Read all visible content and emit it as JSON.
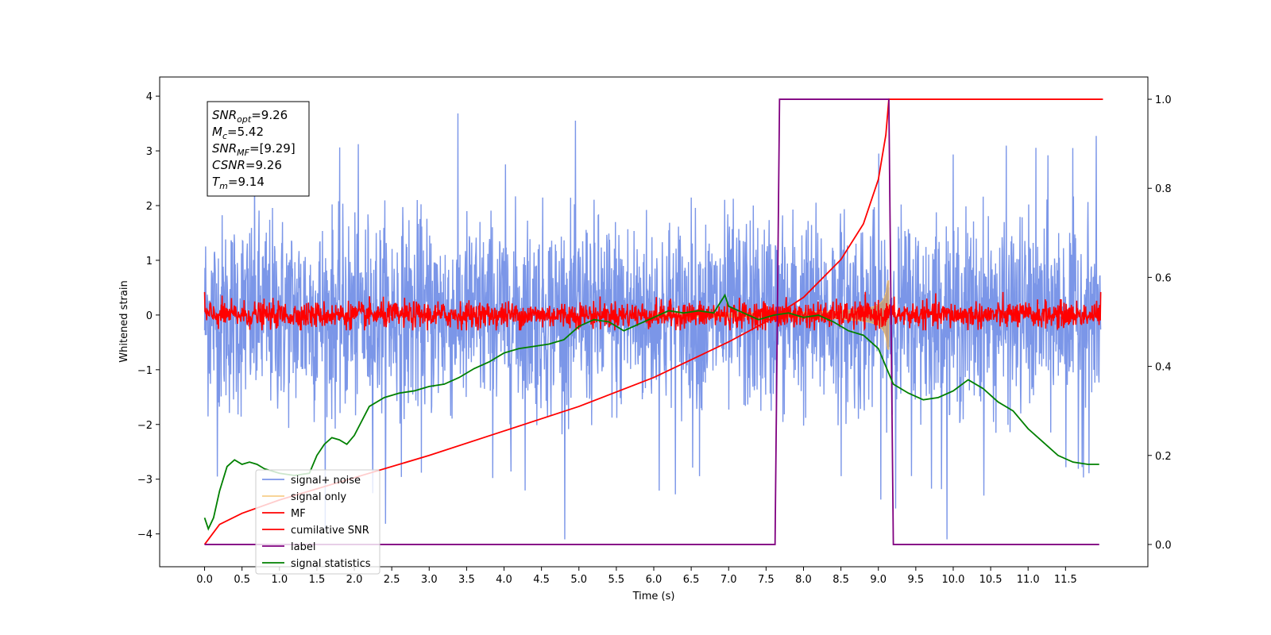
{
  "chart_data": {
    "type": "line",
    "xlabel": "Time (s)",
    "ylabel": "Whitened strain",
    "xlim": [
      -0.6,
      12.6
    ],
    "ylim": [
      -4.6,
      4.35
    ],
    "ylim_right": [
      -0.05,
      1.05
    ],
    "xticks": [
      "0.0",
      "0.5",
      "1.0",
      "1.5",
      "2.0",
      "2.5",
      "3.0",
      "3.5",
      "4.0",
      "4.5",
      "5.0",
      "5.5",
      "6.0",
      "6.5",
      "7.0",
      "7.5",
      "8.0",
      "8.5",
      "9.0",
      "9.5",
      "10.0",
      "10.5",
      "11.0",
      "11.5"
    ],
    "yticks_left": [
      "4",
      "3",
      "2",
      "1",
      "0",
      "−1",
      "−2",
      "−3",
      "−4"
    ],
    "yticks_right": [
      "1.0",
      "0.8",
      "0.6",
      "0.4",
      "0.2",
      "0.0"
    ],
    "grid": false,
    "legend_position": "lower-left",
    "annotation": {
      "lines": [
        {
          "base": "SNR",
          "sub": "opt",
          "value": "=9.26"
        },
        {
          "base": "M",
          "sub": "c",
          "value": "=5.42"
        },
        {
          "base": "SNR",
          "sub": "MF",
          "value": "=[9.29]"
        },
        {
          "base": "CSNR",
          "sub": "",
          "value": "=9.26"
        },
        {
          "base": "T",
          "sub": "m",
          "value": "=9.14"
        }
      ]
    },
    "series": [
      {
        "name": "signal+ noise",
        "color": "#7b96e8",
        "axis": "left",
        "kind": "noise",
        "sigma": 1.0,
        "peak_abs": 4.0
      },
      {
        "name": "signal only",
        "color": "#f5c26b",
        "axis": "left",
        "kind": "chirp",
        "t_end": 9.14,
        "max_amp": 0.75
      },
      {
        "name": "MF",
        "color": "#ff0000",
        "axis": "left",
        "kind": "noise-band",
        "sigma": 0.12
      },
      {
        "name": "cumilative SNR",
        "color": "#ff0000",
        "axis": "right",
        "x": [
          0.0,
          0.2,
          0.5,
          1.0,
          2.0,
          3.0,
          4.0,
          5.0,
          6.0,
          7.0,
          7.5,
          8.0,
          8.5,
          8.8,
          9.0,
          9.1,
          9.14,
          12.0
        ],
        "y": [
          0.0,
          0.045,
          0.07,
          0.1,
          0.15,
          0.2,
          0.255,
          0.31,
          0.375,
          0.455,
          0.5,
          0.555,
          0.64,
          0.72,
          0.82,
          0.92,
          1.0,
          1.0
        ]
      },
      {
        "name": "label",
        "color": "#800080",
        "axis": "right",
        "x": [
          0.0,
          7.62,
          7.68,
          9.14,
          9.2,
          11.95
        ],
        "y": [
          0.0,
          0.0,
          1.0,
          1.0,
          0.0,
          0.0
        ]
      },
      {
        "name": "signal statistics",
        "color": "#008000",
        "axis": "right",
        "x": [
          0.0,
          0.05,
          0.12,
          0.2,
          0.3,
          0.4,
          0.5,
          0.6,
          0.7,
          0.8,
          0.9,
          1.0,
          1.2,
          1.4,
          1.5,
          1.6,
          1.7,
          1.8,
          1.9,
          2.0,
          2.2,
          2.4,
          2.6,
          2.8,
          3.0,
          3.2,
          3.4,
          3.6,
          3.8,
          4.0,
          4.2,
          4.4,
          4.6,
          4.8,
          5.0,
          5.2,
          5.4,
          5.6,
          5.8,
          6.0,
          6.2,
          6.4,
          6.6,
          6.8,
          6.95,
          7.0,
          7.2,
          7.4,
          7.6,
          7.8,
          8.0,
          8.2,
          8.4,
          8.6,
          8.8,
          9.0,
          9.1,
          9.2,
          9.4,
          9.6,
          9.8,
          10.0,
          10.2,
          10.4,
          10.6,
          10.8,
          11.0,
          11.2,
          11.4,
          11.6,
          11.8,
          11.95
        ],
        "y": [
          0.06,
          0.035,
          0.06,
          0.12,
          0.175,
          0.19,
          0.18,
          0.185,
          0.18,
          0.17,
          0.165,
          0.16,
          0.155,
          0.16,
          0.2,
          0.225,
          0.24,
          0.235,
          0.225,
          0.245,
          0.31,
          0.33,
          0.34,
          0.345,
          0.355,
          0.36,
          0.375,
          0.395,
          0.41,
          0.43,
          0.44,
          0.445,
          0.45,
          0.46,
          0.49,
          0.505,
          0.5,
          0.48,
          0.495,
          0.51,
          0.525,
          0.52,
          0.525,
          0.52,
          0.56,
          0.535,
          0.52,
          0.505,
          0.515,
          0.52,
          0.51,
          0.515,
          0.5,
          0.48,
          0.47,
          0.44,
          0.4,
          0.36,
          0.34,
          0.325,
          0.33,
          0.345,
          0.37,
          0.35,
          0.32,
          0.3,
          0.26,
          0.23,
          0.2,
          0.185,
          0.18,
          0.18
        ]
      }
    ]
  }
}
